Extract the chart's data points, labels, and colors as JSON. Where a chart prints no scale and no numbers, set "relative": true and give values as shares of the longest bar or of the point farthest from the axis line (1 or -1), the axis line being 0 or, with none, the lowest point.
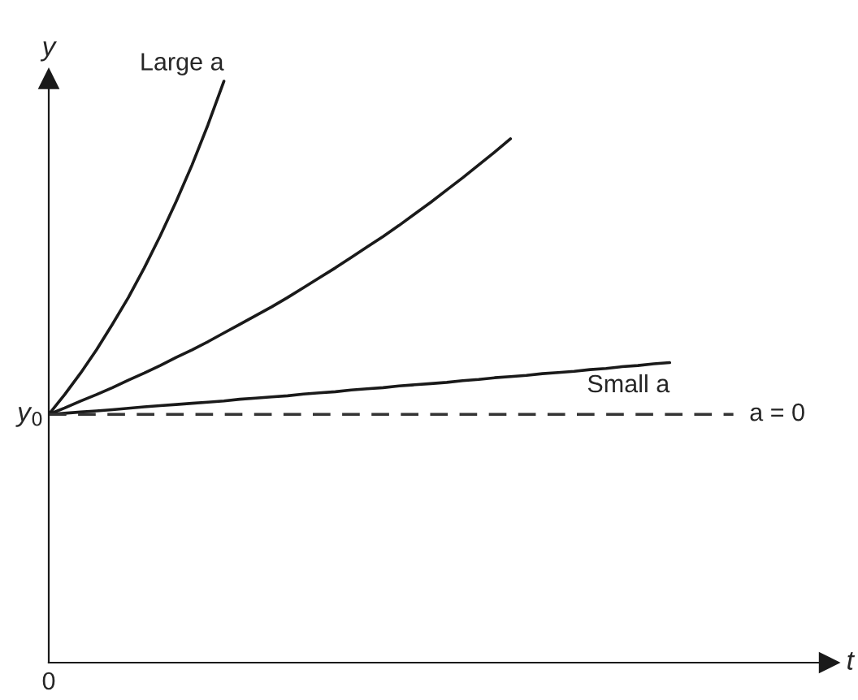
{
  "chart_data": {
    "type": "line",
    "relative": true,
    "xlabel": "t",
    "ylabel": "y",
    "categories": [
      null,
      null,
      null,
      null,
      null,
      null,
      null,
      null,
      null,
      null,
      null,
      null,
      null,
      null,
      null,
      null,
      null,
      null,
      null,
      null,
      null,
      null,
      null,
      null,
      null,
      null,
      null,
      null,
      null,
      null,
      null,
      null,
      null,
      null,
      null,
      null,
      null,
      null,
      null,
      null,
      null,
      null,
      null,
      null,
      null,
      null,
      null,
      null,
      null
    ],
    "annotations": [
      "y$_{0}$",
      "0"
    ],
    "series": [
      {
        "name": "Large a",
        "color": "#1a1a1a",
        "line_style": "solid",
        "values": [
          0.427,
          0.461,
          0.498,
          0.538,
          0.582,
          0.628,
          0.679,
          0.734,
          0.793,
          0.856,
          0.925,
          1.0,
          null,
          null,
          null,
          null,
          null,
          null,
          null,
          null,
          null,
          null,
          null,
          null,
          null,
          null,
          null,
          null,
          null,
          null,
          null,
          null,
          null,
          null,
          null,
          null,
          null,
          null,
          null,
          null,
          null,
          null,
          null,
          null,
          null,
          null,
          null,
          null,
          null
        ]
      },
      {
        "color": "#1a1a1a",
        "line_style": "solid",
        "values": [
          0.427,
          0.438,
          0.45,
          0.461,
          0.473,
          0.486,
          0.498,
          0.511,
          0.525,
          0.538,
          0.552,
          0.567,
          0.582,
          0.597,
          0.612,
          0.628,
          0.645,
          0.662,
          0.679,
          0.697,
          0.715,
          0.733,
          0.752,
          0.772,
          0.792,
          0.813,
          0.834,
          0.856,
          0.878,
          0.901,
          null,
          null,
          null,
          null,
          null,
          null,
          null,
          null,
          null,
          null,
          null,
          null,
          null,
          null,
          null,
          null,
          null,
          null,
          null
        ]
      },
      {
        "name": "Small a",
        "color": "#1a1a1a",
        "line_style": "solid",
        "values": [
          0.427,
          0.429,
          0.431,
          0.433,
          0.435,
          0.4375,
          0.44,
          0.442,
          0.444,
          0.446,
          0.448,
          0.45,
          0.453,
          0.455,
          0.457,
          0.459,
          0.462,
          0.464,
          0.466,
          0.469,
          0.471,
          0.473,
          0.476,
          0.478,
          0.48,
          0.482,
          0.485,
          0.487,
          0.49,
          0.492,
          0.494,
          0.497,
          0.499,
          0.501,
          0.504,
          0.506,
          0.509,
          0.511,
          0.514,
          0.516,
          null,
          null,
          null,
          null,
          null,
          null,
          null,
          null,
          null
        ]
      },
      {
        "name": "a = 0",
        "color": "#333333",
        "line_style": "dashed",
        "values": [
          0.427,
          0.427,
          0.427,
          0.427,
          0.427,
          0.427,
          0.427,
          0.427,
          0.427,
          0.427,
          0.427,
          0.427,
          0.427,
          0.427,
          0.427,
          0.427,
          0.427,
          0.427,
          0.427,
          0.427,
          0.427,
          0.427,
          0.427,
          0.427,
          0.427,
          0.427,
          0.427,
          0.427,
          0.427,
          0.427,
          0.427,
          0.427,
          0.427,
          0.427,
          0.427,
          0.427,
          0.427,
          0.427,
          0.427,
          0.427,
          0.427,
          0.427,
          0.427,
          0.427,
          null,
          null,
          null,
          null,
          null
        ]
      }
    ]
  }
}
